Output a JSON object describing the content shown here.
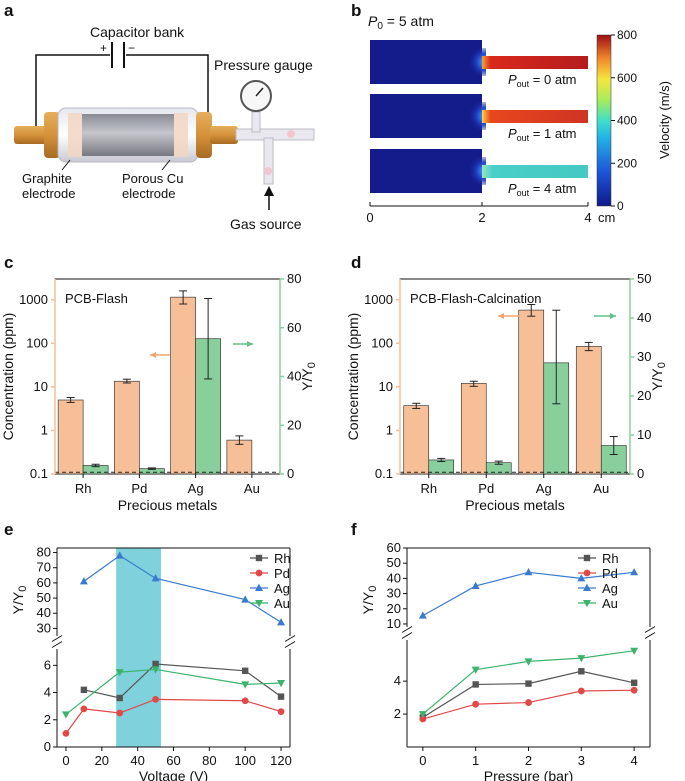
{
  "panels": {
    "a": "a",
    "b": "b",
    "c": "c",
    "d": "d",
    "e": "e",
    "f": "f"
  },
  "panel_a": {
    "capacitor_label": "Capacitor bank",
    "plus": "+",
    "minus": "−",
    "gauge_label": "Pressure gauge",
    "graphite_line1": "Graphite",
    "graphite_line2": "electrode",
    "porous_line1": "Porous Cu",
    "porous_line2": "electrode",
    "gas_label": "Gas source"
  },
  "panel_b": {
    "p0_main": "P",
    "p0_sub": "0",
    "p0_rest": " = 5 atm",
    "pout_main": "P",
    "pout_sub": "out",
    "channels": [
      " = 0 atm",
      " = 1 atm",
      " = 4 atm"
    ],
    "channel_speed_fraction": [
      0.85,
      0.78,
      0.5
    ],
    "colorbar_ticks": [
      "800",
      "600",
      "400",
      "200",
      "0"
    ],
    "colorbar_label": "Velocity (m/s)",
    "x_ticks": [
      "0",
      "2",
      "4"
    ],
    "x_unit": "cm",
    "colors": {
      "low": "#141c8c",
      "mid": "#3ad8d0",
      "high": "#9e0f16"
    }
  },
  "chart_data": [
    {
      "panel": "c",
      "type": "bar",
      "title": "PCB-Flash",
      "categories": [
        "Rh",
        "Pd",
        "Ag",
        "Au"
      ],
      "series": [
        {
          "name": "Concentration (ppm)",
          "axis": "left",
          "scale": "log",
          "values": [
            5,
            13.5,
            1150,
            0.6
          ],
          "err_low": [
            4.4,
            12.3,
            800,
            0.48
          ],
          "err_high": [
            5.7,
            15,
            1600,
            0.75
          ],
          "color": "#f7bf98"
        },
        {
          "name": "Y/Y0",
          "axis": "right",
          "values": [
            3.5,
            2.2,
            55.5,
            null
          ],
          "err_low": [
            3.0,
            1.9,
            39,
            null
          ],
          "err_high": [
            4.0,
            2.5,
            72,
            null
          ],
          "color": "#88cf9c"
        }
      ],
      "xlabel": "Precious metals",
      "ylabel_left": "Concentration (ppm)",
      "ylabel_right_main": "Y/Y",
      "ylabel_right_sub": "0",
      "ylim_left": [
        0.1,
        3000
      ],
      "left_ticks": [
        "0.1",
        "1",
        "10",
        "100",
        "1000"
      ],
      "ylim_right": [
        0,
        80
      ],
      "right_ticks": [
        "0",
        "20",
        "40",
        "60",
        "80"
      ],
      "baseline": 0.11
    },
    {
      "panel": "d",
      "type": "bar",
      "title": "PCB-Flash-Calcination",
      "categories": [
        "Rh",
        "Pd",
        "Ag",
        "Au"
      ],
      "series": [
        {
          "name": "Concentration (ppm)",
          "axis": "left",
          "scale": "log",
          "values": [
            3.7,
            12,
            580,
            85
          ],
          "err_low": [
            3.2,
            10.3,
            420,
            68
          ],
          "err_high": [
            4.2,
            13.5,
            780,
            105
          ],
          "color": "#f7bf98"
        },
        {
          "name": "Y/Y0",
          "axis": "right",
          "values": [
            3.6,
            2.9,
            28.5,
            7.3
          ],
          "err_low": [
            3.2,
            2.5,
            18,
            5.0
          ],
          "err_high": [
            4.0,
            3.3,
            42,
            9.6
          ],
          "color": "#88cf9c"
        }
      ],
      "xlabel": "Precious metals",
      "ylabel_left": "Concentration (ppm)",
      "ylabel_right_main": "Y/Y",
      "ylabel_right_sub": "0",
      "ylim_left": [
        0.1,
        3000
      ],
      "left_ticks": [
        "0.1",
        "1",
        "10",
        "100",
        "1000"
      ],
      "ylim_right": [
        0,
        50
      ],
      "right_ticks": [
        "0",
        "10",
        "20",
        "30",
        "40",
        "50"
      ],
      "baseline": 0.11
    },
    {
      "panel": "e",
      "type": "line",
      "x": [
        0,
        10,
        30,
        50,
        100,
        120
      ],
      "series": [
        {
          "name": "Rh",
          "values": [
            null,
            4.2,
            3.6,
            6.1,
            5.6,
            3.7
          ],
          "color": "#555555",
          "marker": "square"
        },
        {
          "name": "Pd",
          "values": [
            1.0,
            2.8,
            2.5,
            3.5,
            3.4,
            2.6
          ],
          "color": "#e14848",
          "marker": "circle"
        },
        {
          "name": "Ag",
          "values": [
            null,
            61,
            78,
            63,
            49,
            34
          ],
          "color": "#3a7bd0",
          "marker": "triangle-up"
        },
        {
          "name": "Au",
          "values": [
            2.4,
            null,
            5.5,
            5.7,
            4.6,
            4.7
          ],
          "color": "#3cb36c",
          "marker": "triangle-down"
        }
      ],
      "xlabel": "Voltage (V)",
      "ylabel_main": "Y/Y",
      "ylabel_sub": "0",
      "x_ticks": [
        "0",
        "20",
        "40",
        "60",
        "80",
        "100",
        "120"
      ],
      "y_upper_ticks": [
        "30",
        "40",
        "50",
        "60",
        "70",
        "80"
      ],
      "y_lower_ticks": [
        "0",
        "2",
        "4",
        "6"
      ],
      "ylim_upper": [
        25,
        83
      ],
      "ylim_lower": [
        0,
        7.2
      ],
      "highlight_range": [
        28,
        53
      ]
    },
    {
      "panel": "f",
      "type": "line",
      "x": [
        0,
        1,
        2,
        3,
        4
      ],
      "series": [
        {
          "name": "Rh",
          "values": [
            1.8,
            3.8,
            3.85,
            4.6,
            3.9
          ],
          "color": "#555555",
          "marker": "square"
        },
        {
          "name": "Pd",
          "values": [
            1.7,
            2.6,
            2.7,
            3.4,
            3.45
          ],
          "color": "#e14848",
          "marker": "circle"
        },
        {
          "name": "Ag",
          "values": [
            15.5,
            35,
            44,
            40,
            44
          ],
          "color": "#3a7bd0",
          "marker": "triangle-up"
        },
        {
          "name": "Au",
          "values": [
            2.0,
            4.7,
            5.2,
            5.4,
            5.85
          ],
          "color": "#3cb36c",
          "marker": "triangle-down"
        }
      ],
      "xlabel": "Pressure (bar)",
      "ylabel_main": "Y/Y",
      "ylabel_sub": "0",
      "x_ticks": [
        "0",
        "1",
        "2",
        "3",
        "4"
      ],
      "y_upper_ticks": [
        "10",
        "20",
        "30",
        "40",
        "50",
        "60"
      ],
      "y_lower_ticks": [
        "2",
        "4"
      ],
      "ylim_upper": [
        8,
        60
      ],
      "ylim_lower": [
        0,
        6.5
      ]
    }
  ],
  "colors": {
    "orange_arrow": "#f3a36b",
    "green_arrow": "#5fc386",
    "teal_band": "#7fd1dc"
  }
}
